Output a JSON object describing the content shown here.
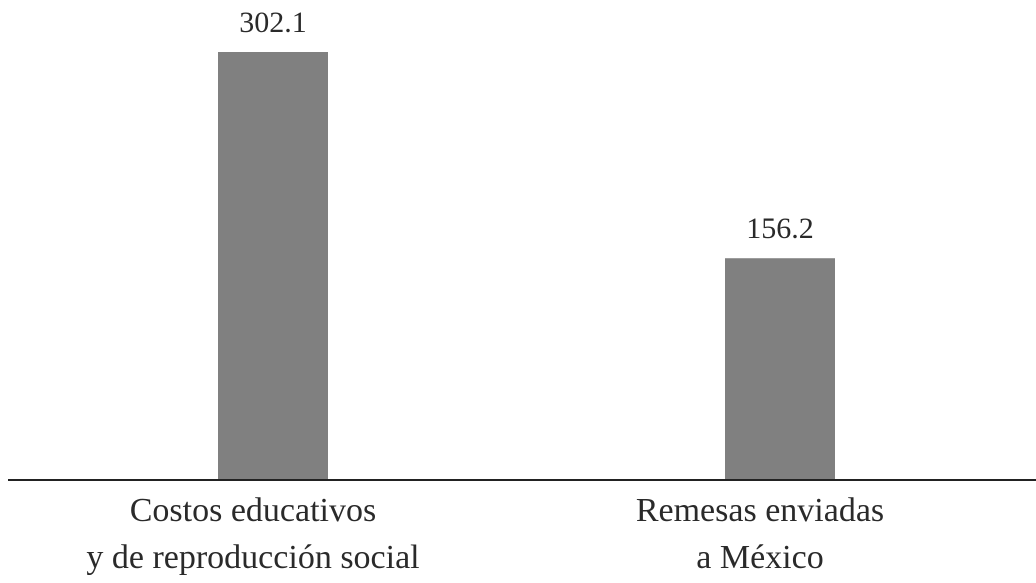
{
  "chart_data": {
    "type": "bar",
    "categories": [
      [
        "Costos educativos",
        "y de reproducción social"
      ],
      [
        "Remesas enviadas",
        "a México"
      ]
    ],
    "values": [
      302.1,
      156.2
    ],
    "value_labels": [
      "302.1",
      "156.2"
    ],
    "title": "",
    "xlabel": "",
    "ylabel": "",
    "ylim": [
      0,
      302.1
    ],
    "grid": false,
    "legend": "none",
    "bar_color": "#808080",
    "axis_color": "#222222"
  }
}
